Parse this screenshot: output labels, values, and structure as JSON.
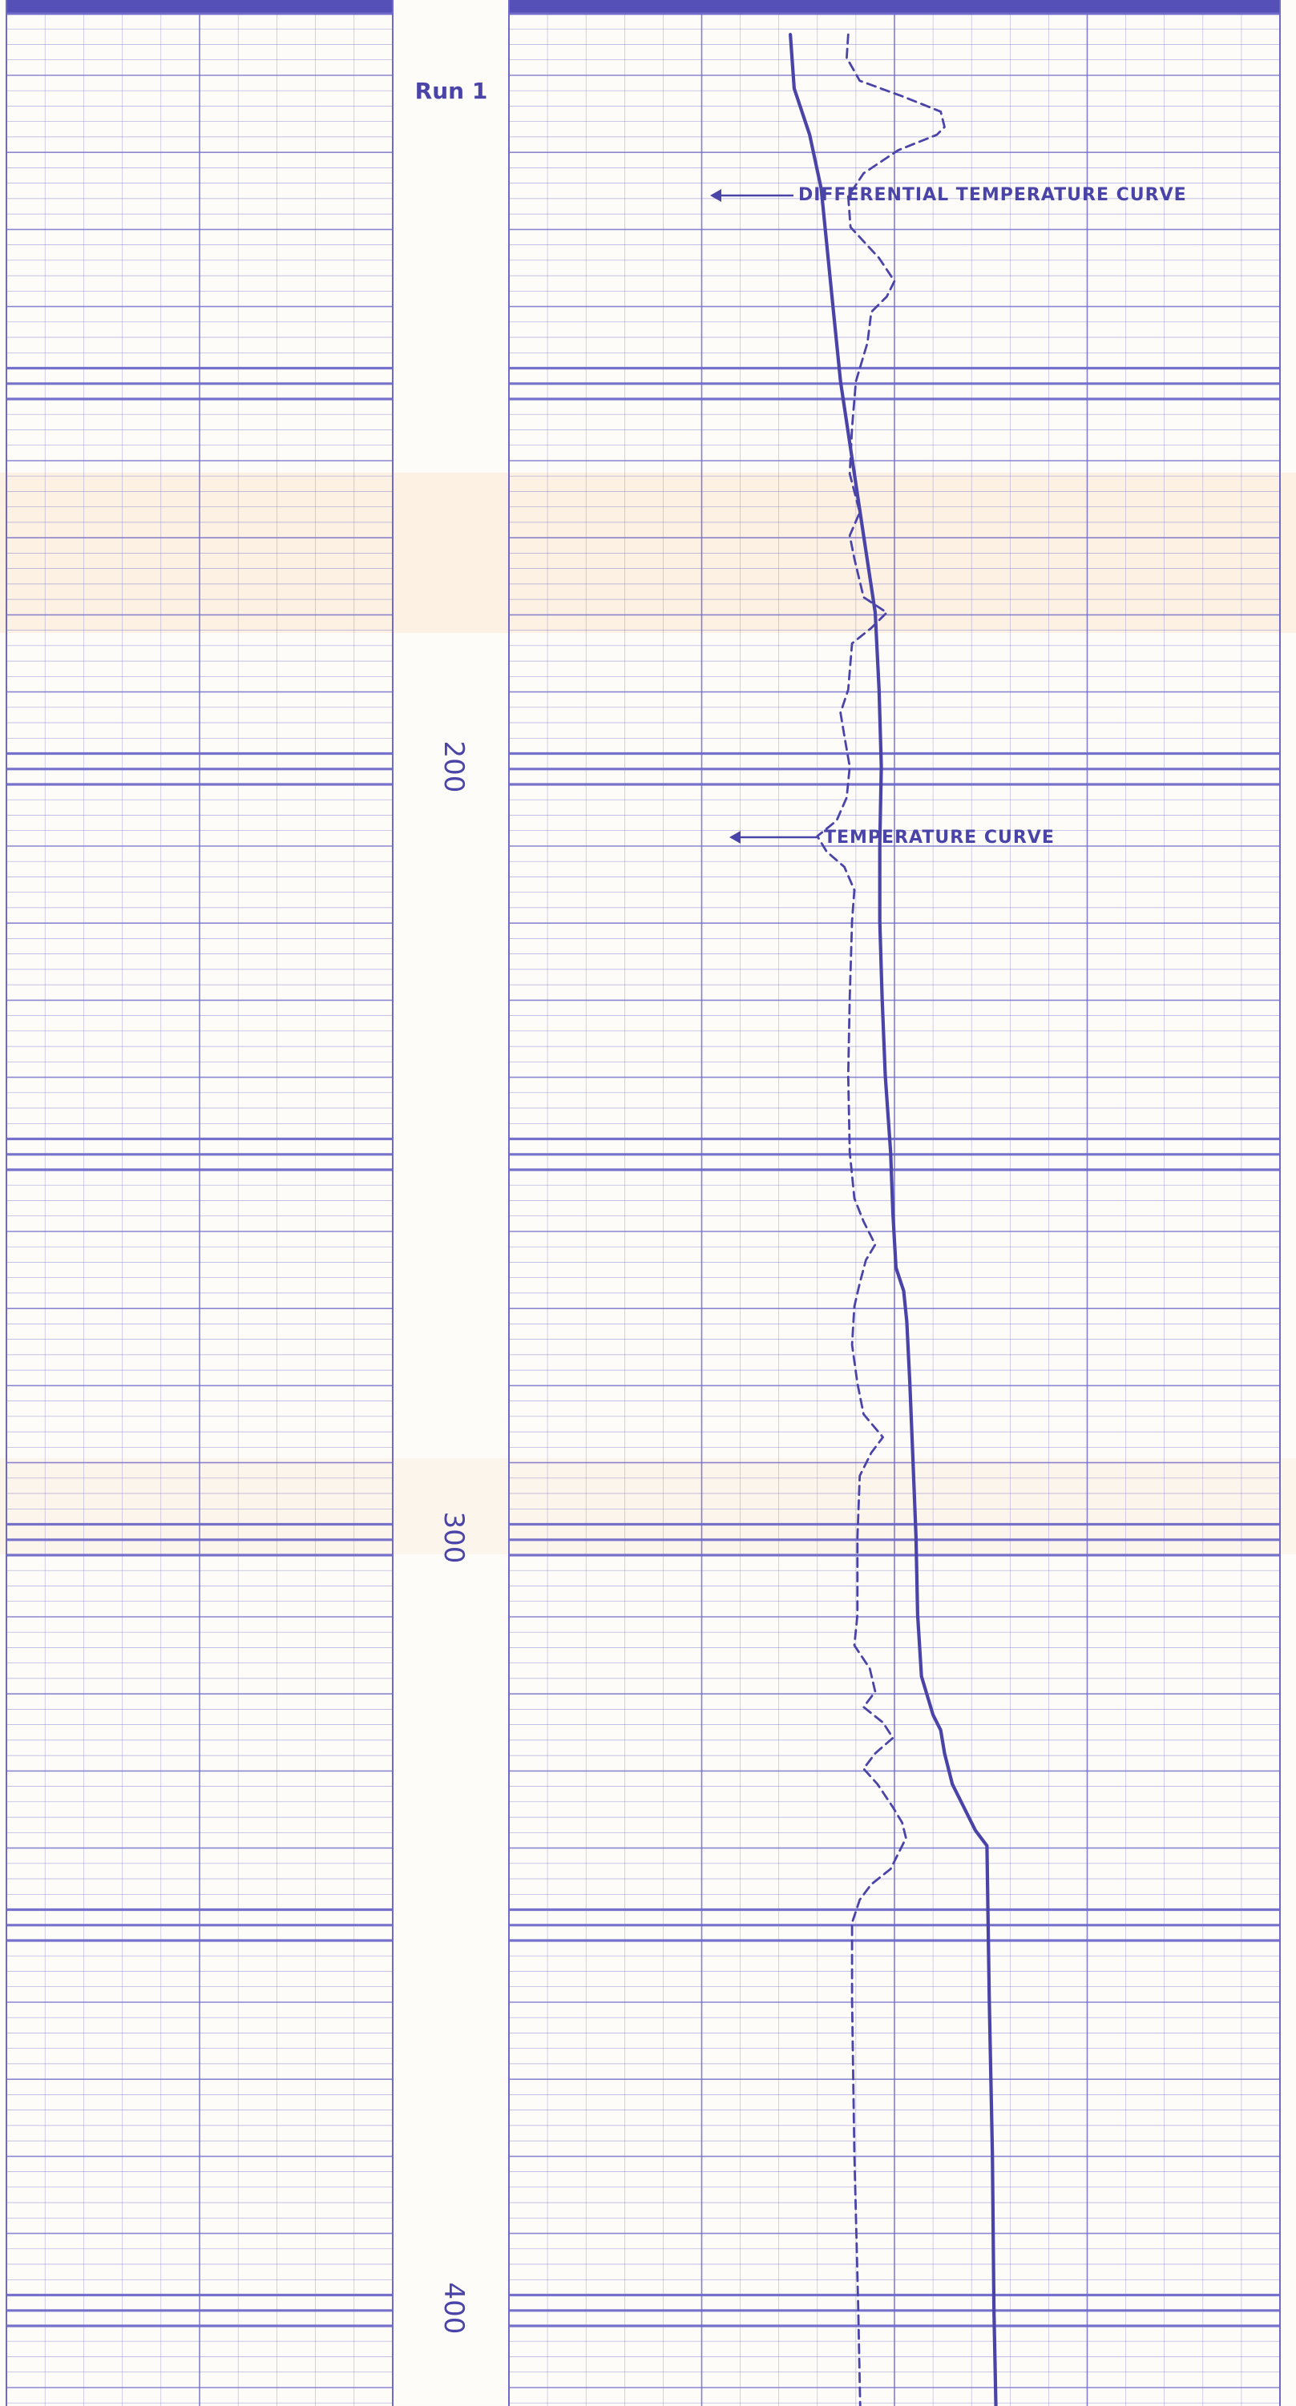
{
  "chart_data": {
    "type": "line",
    "title": "",
    "run_label": "Run 1",
    "depth_ticks": [
      "200",
      "300",
      "400"
    ],
    "depth_range": [
      105,
      415
    ],
    "annotations": {
      "differential": "DIFFERENTIAL TEMPERATURE CURVE",
      "temperature": "TEMPERATURE CURVE"
    },
    "grid": true,
    "series": [
      {
        "key": "temperature",
        "style": "solid",
        "points": [
          [
            105,
            36.5
          ],
          [
            112,
            37
          ],
          [
            118,
            39
          ],
          [
            125,
            40.5
          ],
          [
            135,
            41.5
          ],
          [
            140,
            42
          ],
          [
            150,
            43
          ],
          [
            160,
            44.5
          ],
          [
            170,
            46
          ],
          [
            180,
            47.5
          ],
          [
            190,
            48
          ],
          [
            200,
            48.3
          ],
          [
            210,
            48.1
          ],
          [
            220,
            48.1
          ],
          [
            230,
            48.4
          ],
          [
            240,
            48.8
          ],
          [
            250,
            49.5
          ],
          [
            258,
            49.8
          ],
          [
            265,
            50.2
          ],
          [
            268,
            51.2
          ],
          [
            272,
            51.6
          ],
          [
            280,
            52
          ],
          [
            290,
            52.4
          ],
          [
            300,
            52.8
          ],
          [
            310,
            53
          ],
          [
            318,
            53.5
          ],
          [
            323,
            55
          ],
          [
            325,
            56
          ],
          [
            328,
            56.5
          ],
          [
            332,
            57.5
          ],
          [
            335,
            59
          ],
          [
            338,
            60.5
          ],
          [
            340,
            62
          ],
          [
            360,
            62.3
          ],
          [
            380,
            62.7
          ],
          [
            400,
            62.9
          ],
          [
            415,
            63.2
          ]
        ]
      },
      {
        "key": "differential",
        "style": "dashed",
        "points": [
          [
            105,
            44
          ],
          [
            108,
            43.8
          ],
          [
            111,
            45.5
          ],
          [
            113,
            51
          ],
          [
            115,
            56
          ],
          [
            117,
            56.5
          ],
          [
            118,
            55.5
          ],
          [
            120,
            50.5
          ],
          [
            123,
            46
          ],
          [
            126,
            44
          ],
          [
            130,
            44.3
          ],
          [
            134,
            48
          ],
          [
            137,
            50
          ],
          [
            139,
            49
          ],
          [
            141,
            47
          ],
          [
            145,
            46.5
          ],
          [
            150,
            45
          ],
          [
            156,
            44.5
          ],
          [
            162,
            44.2
          ],
          [
            167,
            45.5
          ],
          [
            170,
            44.2
          ],
          [
            173,
            44.8
          ],
          [
            178,
            46
          ],
          [
            180,
            49
          ],
          [
            182,
            47
          ],
          [
            184,
            44.5
          ],
          [
            190,
            44
          ],
          [
            193,
            43
          ],
          [
            196,
            43.5
          ],
          [
            200,
            44.2
          ],
          [
            204,
            43.8
          ],
          [
            207,
            42.5
          ],
          [
            209,
            40
          ],
          [
            211,
            41.2
          ],
          [
            213,
            43.5
          ],
          [
            216,
            44.8
          ],
          [
            220,
            44.5
          ],
          [
            230,
            44.2
          ],
          [
            240,
            44
          ],
          [
            250,
            44.2
          ],
          [
            256,
            44.8
          ],
          [
            259,
            46
          ],
          [
            262,
            47.5
          ],
          [
            264,
            46.3
          ],
          [
            267,
            45.5
          ],
          [
            270,
            44.8
          ],
          [
            275,
            44.5
          ],
          [
            280,
            45.2
          ],
          [
            284,
            46
          ],
          [
            287,
            48.5
          ],
          [
            289,
            47
          ],
          [
            292,
            45.5
          ],
          [
            300,
            45.2
          ],
          [
            310,
            45.2
          ],
          [
            314,
            44.8
          ],
          [
            317,
            46.8
          ],
          [
            320,
            47.5
          ],
          [
            322,
            46
          ],
          [
            324,
            48.5
          ],
          [
            326,
            49.8
          ],
          [
            328,
            47.5
          ],
          [
            330,
            46
          ],
          [
            332,
            47.8
          ],
          [
            335,
            49.8
          ],
          [
            337,
            51
          ],
          [
            339,
            51.5
          ],
          [
            341,
            50.5
          ],
          [
            343,
            49.5
          ],
          [
            345,
            47
          ],
          [
            347,
            45.5
          ],
          [
            350,
            44.5
          ],
          [
            360,
            44.5
          ],
          [
            380,
            44.8
          ],
          [
            400,
            45.3
          ],
          [
            415,
            45.6
          ]
        ]
      }
    ]
  }
}
